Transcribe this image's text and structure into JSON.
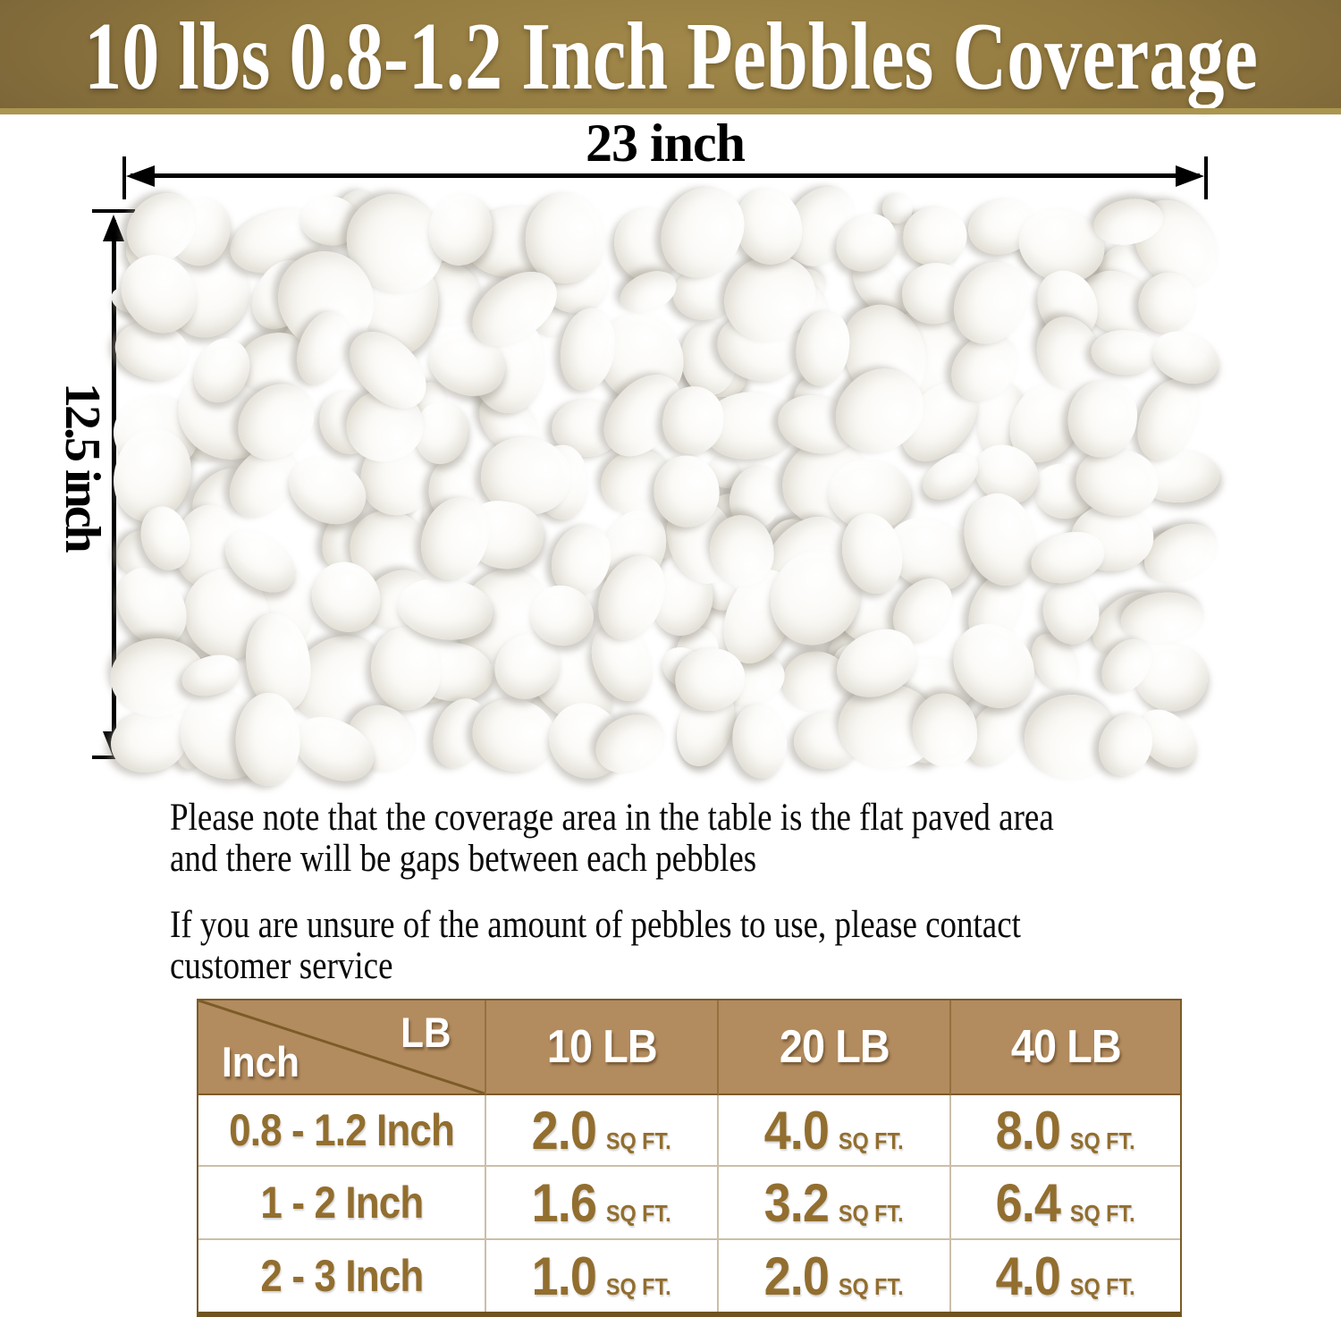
{
  "banner": {
    "title": "10 lbs 0.8-1.2 Inch Pebbles Coverage"
  },
  "dimensions": {
    "width_label": "23 inch",
    "height_label": "12.5 inch"
  },
  "photo": {
    "subject": "white polished pebbles mat"
  },
  "notes": [
    {
      "line1": "Please note that the coverage area in the table is the flat paved area",
      "line2": "and there will be gaps between each pebbles"
    },
    {
      "line1": "If you are unsure of the amount of pebbles to use, please contact",
      "line2": "customer service"
    }
  ],
  "coverage_table": {
    "corner": {
      "top_right": "LB",
      "bottom_left": "Inch"
    },
    "columns": [
      "10 LB",
      "20 LB",
      "40 LB"
    ],
    "unit": "SQ FT.",
    "rows": [
      {
        "label": "0.8 - 1.2 Inch",
        "values": [
          "2.0",
          "4.0",
          "8.0"
        ]
      },
      {
        "label": "1 - 2 Inch",
        "values": [
          "1.6",
          "3.2",
          "6.4"
        ]
      },
      {
        "label": "2 - 3 Inch",
        "values": [
          "1.0",
          "2.0",
          "4.0"
        ]
      }
    ]
  },
  "colors": {
    "banner_brown": "#92793f",
    "banner_edge_brown": "#6b5630",
    "banner_strip": "#ab964f",
    "header_bg": "#b28b5e",
    "table_outer_border": "#7b5b27",
    "table_bottom_border": "#6f5420",
    "table_divider": "#cbbfa8",
    "table_text_brown": "#926e2f",
    "dimension_black": "#000000"
  }
}
